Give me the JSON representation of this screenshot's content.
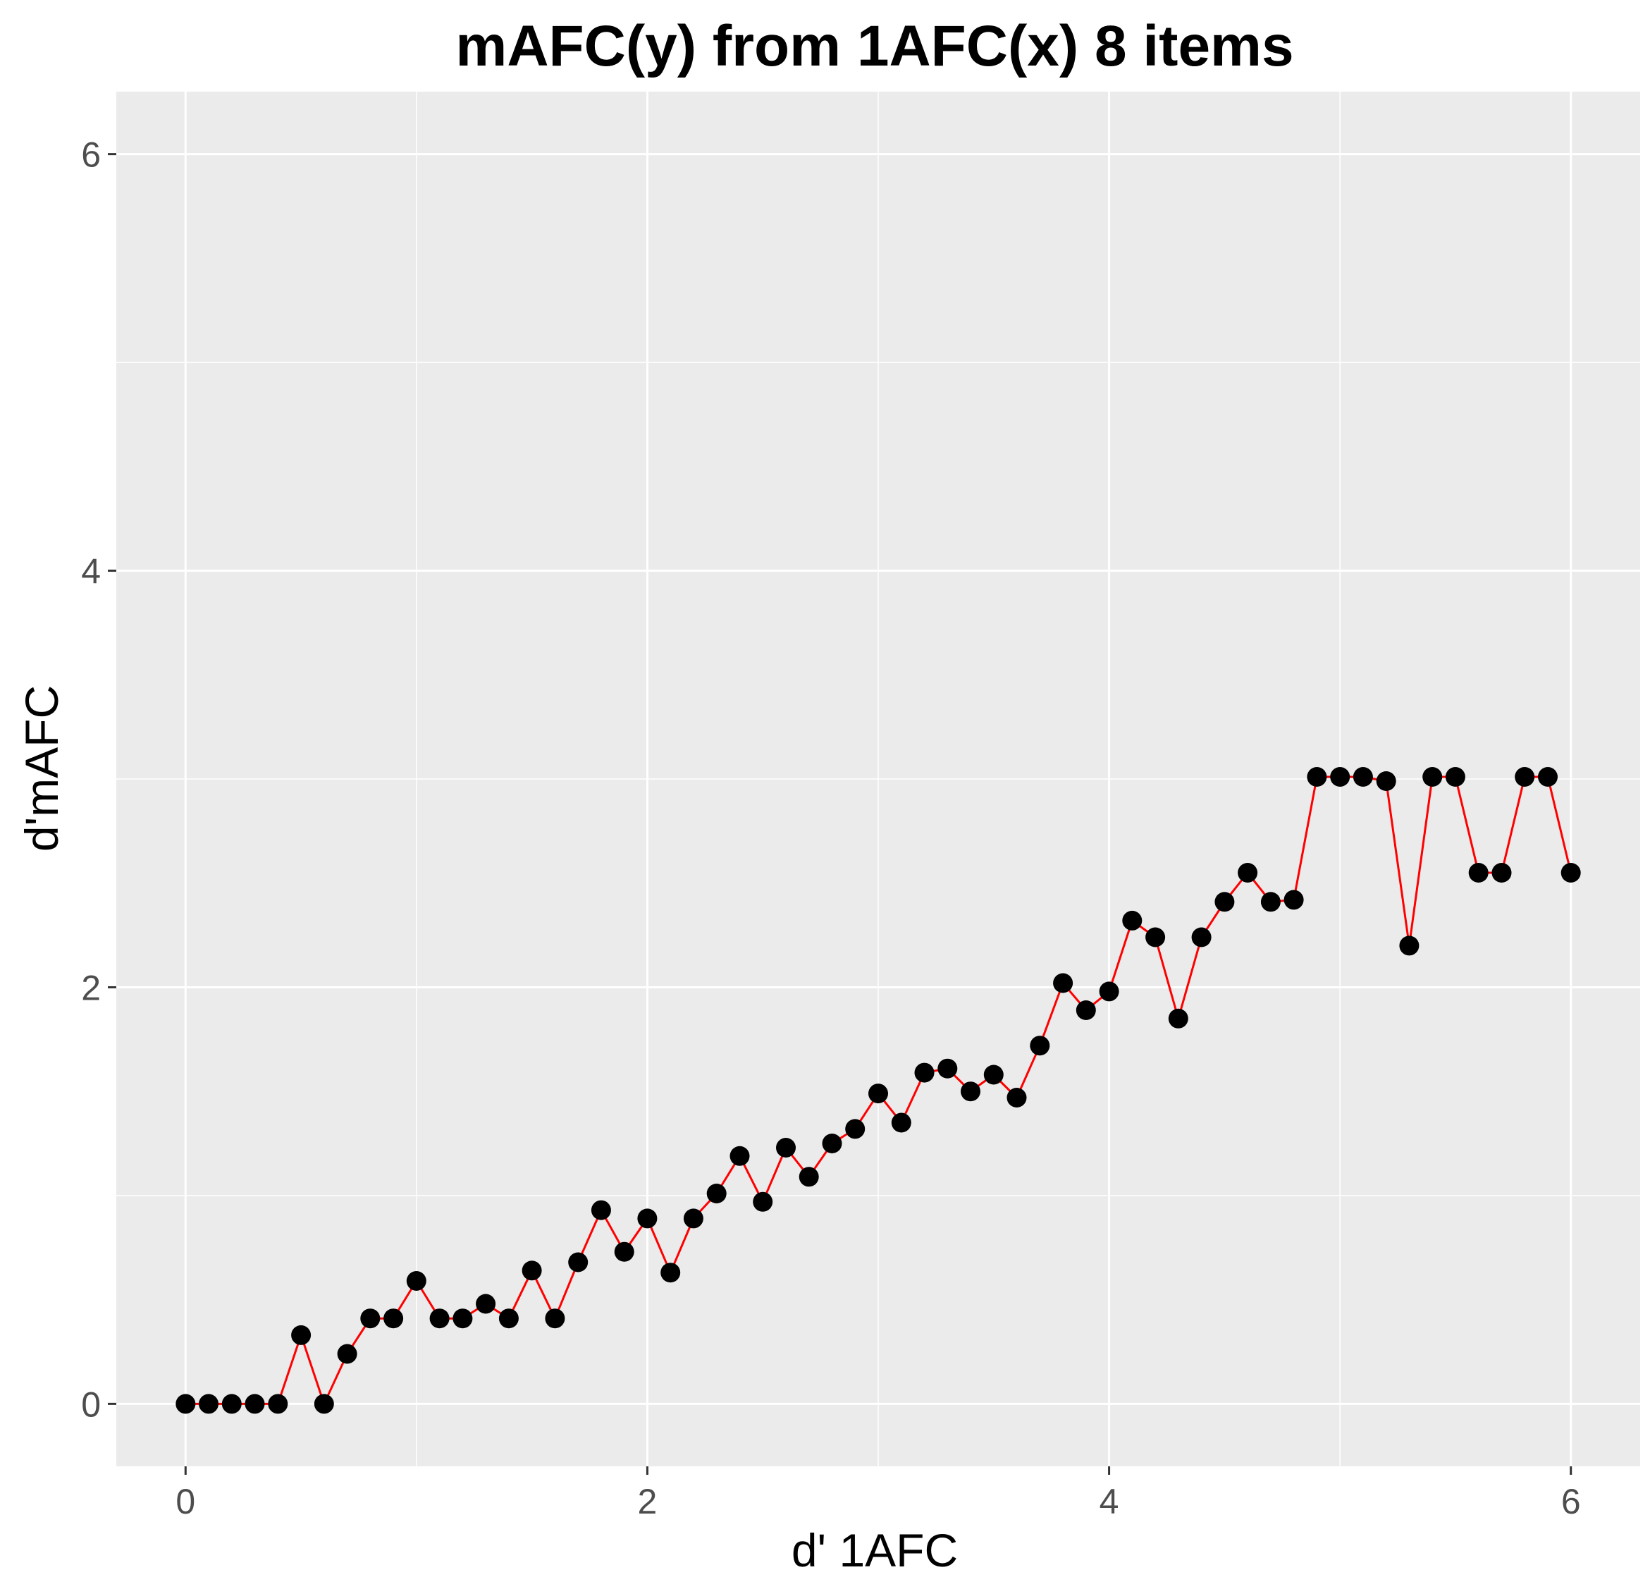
{
  "chart_data": {
    "type": "line",
    "title": "mAFC(y) from 1AFC(x) 8 items",
    "xlabel": "d' 1AFC",
    "ylabel": "d'mAFC",
    "xlim": [
      -0.3,
      6.3
    ],
    "ylim": [
      -0.3,
      6.3
    ],
    "x_ticks": [
      0,
      2,
      4,
      6
    ],
    "y_ticks": [
      0,
      2,
      4,
      6
    ],
    "x_tick_labels": [
      "0",
      "2",
      "4",
      "6"
    ],
    "y_tick_labels": [
      "0",
      "2",
      "4",
      "6"
    ],
    "grid": true,
    "legend": "none",
    "colors": {
      "panel_background": "#ebebeb",
      "grid": "#ffffff",
      "line": "#ff0000",
      "points": "#000000"
    },
    "series": [
      {
        "x": [
          0.0,
          0.1,
          0.2,
          0.3,
          0.4,
          0.5,
          0.6,
          0.7,
          0.8,
          0.9,
          1.0,
          1.1,
          1.2,
          1.3,
          1.4,
          1.5,
          1.6,
          1.7,
          1.8,
          1.9,
          2.0,
          2.1,
          2.2,
          2.3,
          2.4,
          2.5,
          2.6,
          2.7,
          2.8,
          2.9,
          3.0,
          3.1,
          3.2,
          3.3,
          3.4,
          3.5,
          3.6,
          3.7,
          3.8,
          3.9,
          4.0,
          4.1,
          4.2,
          4.3,
          4.4,
          4.5,
          4.6,
          4.7,
          4.8,
          4.9,
          5.0,
          5.1,
          5.2,
          5.3,
          5.4,
          5.5,
          5.6,
          5.7,
          5.8,
          5.9,
          6.0
        ],
        "y": [
          0.0,
          0.0,
          0.0,
          0.0,
          0.0,
          0.33,
          0.0,
          0.24,
          0.41,
          0.41,
          0.59,
          0.41,
          0.41,
          0.48,
          0.41,
          0.64,
          0.41,
          0.68,
          0.93,
          0.73,
          0.89,
          0.63,
          0.89,
          1.01,
          1.19,
          0.97,
          1.23,
          1.09,
          1.25,
          1.32,
          1.49,
          1.35,
          1.59,
          1.61,
          1.5,
          1.58,
          1.47,
          1.72,
          2.02,
          1.89,
          1.98,
          2.32,
          2.24,
          1.85,
          2.24,
          2.41,
          2.55,
          2.41,
          2.42,
          3.01,
          3.01,
          3.01,
          2.99,
          2.2,
          3.01,
          3.01,
          2.55,
          2.55,
          3.01,
          3.01,
          2.55
        ]
      }
    ]
  }
}
